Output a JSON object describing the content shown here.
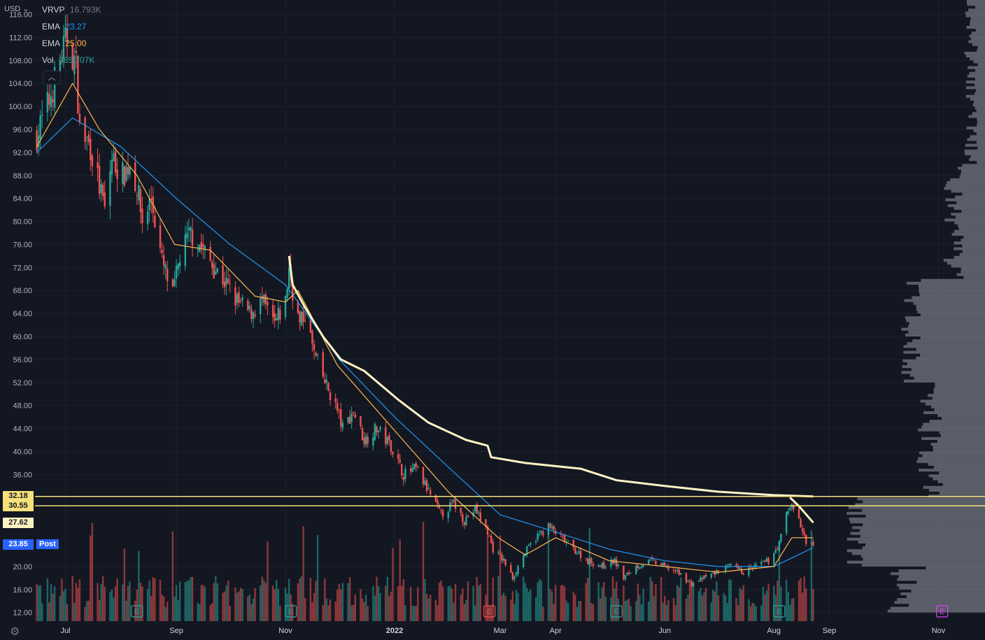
{
  "header": {
    "currency": "USD",
    "currency_caret": "⌄",
    "collapse_icon": "chevron-up-icon",
    "settings_icon": "gear-icon"
  },
  "legend": [
    {
      "label": "VRVP",
      "value": "16.793K",
      "color": "#787b86"
    },
    {
      "label": "EMA",
      "value": "23.27",
      "color": "#2196f3"
    },
    {
      "label": "EMA",
      "value": "25.00",
      "color": "#ffb74d"
    },
    {
      "label": "Vol",
      "value": "985.707K",
      "color": "#26a69a"
    }
  ],
  "price_labels": [
    {
      "text": "32.18",
      "value": 32.18,
      "color": "#f5e07a"
    },
    {
      "text": "30.55",
      "value": 30.55,
      "color": "#f5e07a"
    },
    {
      "text": "27.62",
      "value": 27.62,
      "color": "#fff3c4"
    },
    {
      "text": "23.85",
      "value": 23.85,
      "color": "#2962ff"
    }
  ],
  "post_tag": "Post",
  "earnings_markers": [
    {
      "date": "2021-08-10",
      "label": "E",
      "color": "#26a69a"
    },
    {
      "date": "2021-11-04",
      "label": "E",
      "color": "#26a69a"
    },
    {
      "date": "2022-02-23",
      "label": "E",
      "color": "#ef5350"
    },
    {
      "date": "2022-05-05",
      "label": "E",
      "color": "#26a69a"
    },
    {
      "date": "2022-08-04",
      "label": "E",
      "color": "#26a69a"
    },
    {
      "date": "2022-11-03",
      "label": "E",
      "color": "#e040fb"
    }
  ],
  "chart_data": {
    "type": "candlestick",
    "y_ticks": [
      116,
      112,
      108,
      104,
      100,
      96,
      92,
      88,
      84,
      80,
      76,
      72,
      68,
      64,
      60,
      56,
      52,
      48,
      44,
      40,
      36,
      20,
      16,
      12
    ],
    "y_tick_labels": [
      "116.00",
      "112.00",
      "108.00",
      "104.00",
      "100.00",
      "96.00",
      "92.00",
      "88.00",
      "84.00",
      "80.00",
      "76.00",
      "72.00",
      "68.00",
      "64.00",
      "60.00",
      "56.00",
      "52.00",
      "48.00",
      "44.00",
      "40.00",
      "36.00",
      "20.00",
      "16.00",
      "12.00"
    ],
    "ylim": [
      10.5,
      118.5
    ],
    "x_ticks": [
      {
        "label": "Jul",
        "date": "2021-07-01",
        "bold": false
      },
      {
        "label": "Sep",
        "date": "2021-09-01",
        "bold": false
      },
      {
        "label": "Nov",
        "date": "2021-11-01",
        "bold": false
      },
      {
        "label": "2022",
        "date": "2022-01-01",
        "bold": true
      },
      {
        "label": "Mar",
        "date": "2022-03-01",
        "bold": false
      },
      {
        "label": "Apr",
        "date": "2022-04-01",
        "bold": false
      },
      {
        "label": "Jun",
        "date": "2022-06-01",
        "bold": false
      },
      {
        "label": "Aug",
        "date": "2022-08-01",
        "bold": false
      },
      {
        "label": "Sep",
        "date": "2022-09-01",
        "bold": false
      },
      {
        "label": "Nov",
        "date": "2022-11-01",
        "bold": false
      }
    ],
    "xlim": [
      "2021-06-14",
      "2022-11-27"
    ],
    "horizontal_lines": [
      32.18,
      30.55
    ],
    "close_path": [
      [
        "2021-06-15",
        95
      ],
      [
        "2021-06-22",
        101
      ],
      [
        "2021-06-29",
        109
      ],
      [
        "2021-07-02",
        112
      ],
      [
        "2021-07-07",
        107
      ],
      [
        "2021-07-09",
        96
      ],
      [
        "2021-07-15",
        93
      ],
      [
        "2021-07-20",
        86
      ],
      [
        "2021-07-23",
        82
      ],
      [
        "2021-07-27",
        91
      ],
      [
        "2021-08-02",
        88
      ],
      [
        "2021-08-06",
        90
      ],
      [
        "2021-08-10",
        86
      ],
      [
        "2021-08-13",
        80
      ],
      [
        "2021-08-18",
        84
      ],
      [
        "2021-08-24",
        73
      ],
      [
        "2021-08-30",
        67
      ],
      [
        "2021-09-03",
        74
      ],
      [
        "2021-09-09",
        78
      ],
      [
        "2021-09-14",
        76
      ],
      [
        "2021-09-20",
        73
      ],
      [
        "2021-09-27",
        70
      ],
      [
        "2021-10-05",
        66
      ],
      [
        "2021-10-12",
        64
      ],
      [
        "2021-10-19",
        66
      ],
      [
        "2021-10-26",
        62
      ],
      [
        "2021-11-01",
        66
      ],
      [
        "2021-11-03",
        72
      ],
      [
        "2021-11-05",
        68
      ],
      [
        "2021-11-09",
        62
      ],
      [
        "2021-11-12",
        64
      ],
      [
        "2021-11-17",
        57
      ],
      [
        "2021-11-23",
        52
      ],
      [
        "2021-11-29",
        48
      ],
      [
        "2021-12-03",
        44
      ],
      [
        "2021-12-09",
        47
      ],
      [
        "2021-12-15",
        42
      ],
      [
        "2021-12-22",
        44
      ],
      [
        "2021-12-30",
        41
      ],
      [
        "2022-01-06",
        36
      ],
      [
        "2022-01-13",
        37
      ],
      [
        "2022-01-20",
        33
      ],
      [
        "2022-01-27",
        29
      ],
      [
        "2022-02-03",
        31
      ],
      [
        "2022-02-09",
        28
      ],
      [
        "2022-02-15",
        30
      ],
      [
        "2022-02-22",
        26
      ],
      [
        "2022-02-25",
        23
      ],
      [
        "2022-03-03",
        21
      ],
      [
        "2022-03-08",
        18
      ],
      [
        "2022-03-14",
        22
      ],
      [
        "2022-03-21",
        25
      ],
      [
        "2022-03-28",
        27
      ],
      [
        "2022-04-04",
        25
      ],
      [
        "2022-04-11",
        23
      ],
      [
        "2022-04-19",
        21
      ],
      [
        "2022-04-27",
        20
      ],
      [
        "2022-05-04",
        21
      ],
      [
        "2022-05-09",
        18
      ],
      [
        "2022-05-16",
        20
      ],
      [
        "2022-05-24",
        21
      ],
      [
        "2022-06-01",
        20
      ],
      [
        "2022-06-08",
        19
      ],
      [
        "2022-06-16",
        17
      ],
      [
        "2022-06-23",
        18
      ],
      [
        "2022-06-30",
        19
      ],
      [
        "2022-07-08",
        20
      ],
      [
        "2022-07-15",
        19
      ],
      [
        "2022-07-22",
        20
      ],
      [
        "2022-07-29",
        21
      ],
      [
        "2022-08-04",
        24
      ],
      [
        "2022-08-08",
        29
      ],
      [
        "2022-08-11",
        31
      ],
      [
        "2022-08-15",
        28
      ],
      [
        "2022-08-19",
        24
      ],
      [
        "2022-08-23",
        23.85
      ]
    ],
    "ema_20_path": [
      [
        "2021-06-15",
        93
      ],
      [
        "2021-07-05",
        104
      ],
      [
        "2021-07-20",
        96
      ],
      [
        "2021-08-10",
        88
      ],
      [
        "2021-08-31",
        76
      ],
      [
        "2021-09-20",
        75
      ],
      [
        "2021-10-15",
        67
      ],
      [
        "2021-11-01",
        66
      ],
      [
        "2021-11-08",
        68
      ],
      [
        "2021-11-30",
        55
      ],
      [
        "2021-12-31",
        44
      ],
      [
        "2022-01-31",
        33
      ],
      [
        "2022-02-28",
        25
      ],
      [
        "2022-03-15",
        22
      ],
      [
        "2022-04-01",
        25
      ],
      [
        "2022-05-01",
        21
      ],
      [
        "2022-06-01",
        20
      ],
      [
        "2022-07-01",
        19
      ],
      [
        "2022-08-01",
        20
      ],
      [
        "2022-08-11",
        25
      ],
      [
        "2022-08-23",
        25
      ]
    ],
    "ema_50_path": [
      [
        "2021-06-15",
        92
      ],
      [
        "2021-07-05",
        98
      ],
      [
        "2021-08-01",
        93
      ],
      [
        "2021-09-01",
        84
      ],
      [
        "2021-10-01",
        76
      ],
      [
        "2021-11-01",
        69
      ],
      [
        "2021-12-01",
        56
      ],
      [
        "2022-01-01",
        46
      ],
      [
        "2022-02-01",
        37
      ],
      [
        "2022-03-01",
        29
      ],
      [
        "2022-04-01",
        26
      ],
      [
        "2022-05-01",
        23
      ],
      [
        "2022-06-01",
        21
      ],
      [
        "2022-07-01",
        20
      ],
      [
        "2022-08-01",
        20
      ],
      [
        "2022-08-23",
        23.27
      ]
    ],
    "avwap_path": [
      [
        "2021-11-03",
        74
      ],
      [
        "2021-11-05",
        69
      ],
      [
        "2021-11-12",
        65
      ],
      [
        "2021-11-22",
        60
      ],
      [
        "2021-12-02",
        56
      ],
      [
        "2021-12-15",
        54
      ],
      [
        "2022-01-03",
        49
      ],
      [
        "2022-01-20",
        45
      ],
      [
        "2022-02-10",
        42
      ],
      [
        "2022-02-22",
        41
      ],
      [
        "2022-02-24",
        39
      ],
      [
        "2022-03-15",
        38
      ],
      [
        "2022-04-15",
        37
      ],
      [
        "2022-05-05",
        35
      ],
      [
        "2022-06-01",
        34
      ],
      [
        "2022-07-01",
        33
      ],
      [
        "2022-08-01",
        32.4
      ],
      [
        "2022-08-23",
        32.18
      ]
    ],
    "avwap2_path": [
      [
        "2022-08-10",
        32
      ],
      [
        "2022-08-15",
        30.5
      ],
      [
        "2022-08-23",
        27.62
      ]
    ]
  }
}
